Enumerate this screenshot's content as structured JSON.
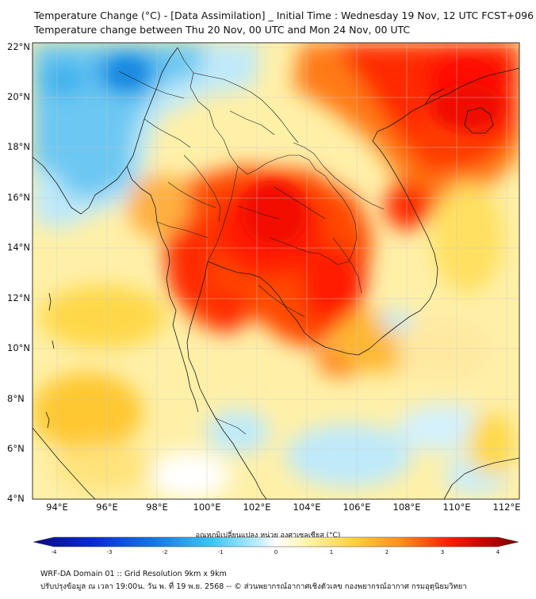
{
  "header": {
    "title_line1": "Temperature Change (°C) - [Data Assimilation] _ Initial Time : Wednesday 19 Nov, 12 UTC FCST+096",
    "title_line2": "Temperature change between Thu 20 Nov, 00 UTC and Mon 24 Nov, 00 UTC"
  },
  "map": {
    "lat_labels": [
      "22°N",
      "20°N",
      "18°N",
      "16°N",
      "14°N",
      "12°N",
      "10°N",
      "8°N",
      "6°N",
      "4°N"
    ],
    "lon_labels": [
      "94°E",
      "96°E",
      "98°E",
      "100°E",
      "102°E",
      "104°E",
      "106°E",
      "108°E",
      "110°E",
      "112°E"
    ],
    "lat_range": [
      4,
      22.2
    ],
    "lon_range": [
      93,
      112.5
    ],
    "colors": {
      "cold": "#1e9be8",
      "cool": "#8fd8f5",
      "neutral": "#ffffe8",
      "warm": "#ffd23c",
      "orange": "#ff8c1a",
      "hot": "#ff1a00"
    }
  },
  "colorbar": {
    "title": "อุณหภูมิเปลี่ยนแปลง หน่วย องศาเซลเซียส (°C)",
    "ticks": [
      "-4",
      "-3",
      "-2",
      "-1",
      "0",
      "1",
      "2",
      "3",
      "4"
    ],
    "min": -4,
    "max": 4
  },
  "footer": {
    "line1": "WRF-DA Domain 01 :: Grid Resolution 9km x 9km",
    "line2": "ปรับปรุงข้อมูล ณ เวลา 19:00น. วัน พ. ที่ 19 พ.ย. 2568 -- © ส่วนพยากรณ์อากาศเชิงตัวเลข กองพยากรณ์อากาศ กรมอุตุนิยมวิทยา"
  }
}
